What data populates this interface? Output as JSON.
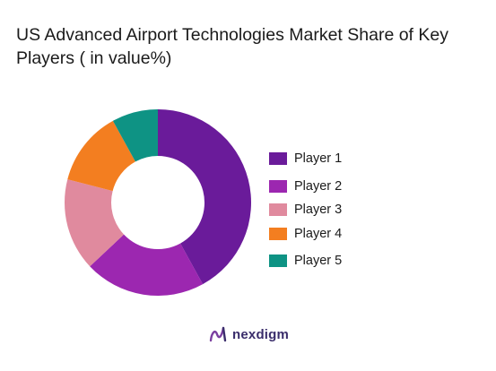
{
  "chart_data": {
    "type": "pie",
    "title": "US Advanced Airport Technologies Market Share of Key Players ( in value%)",
    "categories": [
      "Player 1",
      "Player 2",
      "Player 3",
      "Player 4",
      "Player 5"
    ],
    "values": [
      42,
      21,
      16,
      13,
      8
    ],
    "colors": [
      "#6a1b9a",
      "#9c27b0",
      "#e08a9e",
      "#f37e20",
      "#0e9384"
    ],
    "legend_position": "right",
    "donut": true
  },
  "brand": {
    "name": "nexdigm",
    "logo": "nexdigm-logo"
  }
}
